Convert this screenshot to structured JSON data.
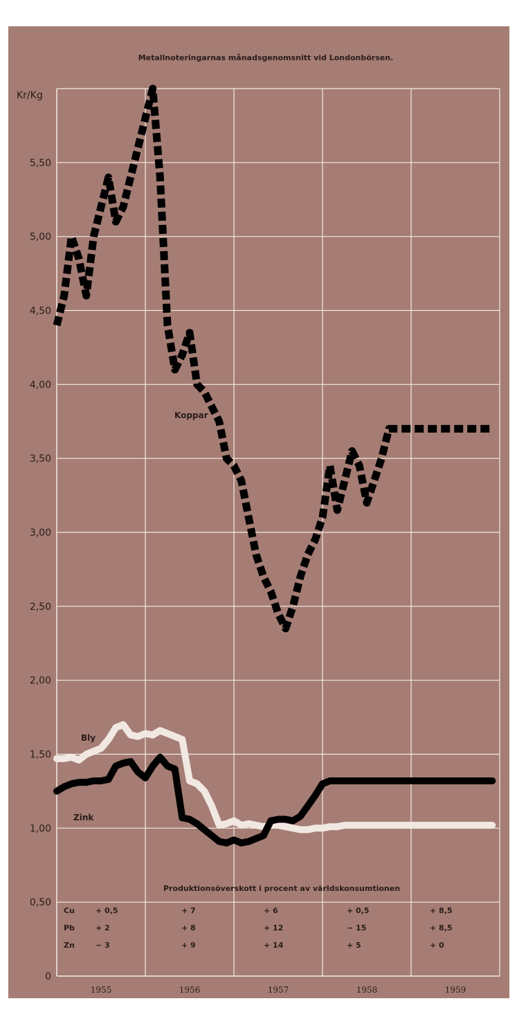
{
  "chart_data": {
    "type": "line",
    "title": "Metallnoteringarnas månadsgenomsnitt vid Londonbörsen.",
    "ylabel": "Kr/Kg",
    "ylim": [
      0,
      6.0
    ],
    "yticks": [
      "0",
      "0,50",
      "1,00",
      "1,50",
      "2,00",
      "2,50",
      "3,00",
      "3,50",
      "4,00",
      "4,50",
      "5,00",
      "5,50"
    ],
    "ytick_values": [
      0,
      0.5,
      1.0,
      1.5,
      2.0,
      2.5,
      3.0,
      3.5,
      4.0,
      4.5,
      5.0,
      5.5
    ],
    "categories": [
      "1955",
      "1956",
      "1957",
      "1958",
      "1959"
    ],
    "xlim": [
      0,
      60
    ],
    "grid": true,
    "series": [
      {
        "name": "Koppar",
        "style": "dashed",
        "color": "#000000",
        "x": [
          0,
          1,
          2,
          3,
          4,
          5,
          6,
          7,
          8,
          9,
          10,
          11,
          12,
          13,
          14,
          15,
          16,
          17,
          18,
          19,
          20,
          21,
          22,
          23,
          24,
          25,
          26,
          27,
          28,
          29,
          30,
          31,
          32,
          33,
          34,
          35,
          36,
          37,
          38,
          39,
          40,
          41,
          42,
          43,
          44,
          45,
          46,
          47,
          48,
          49,
          50,
          51,
          52,
          53,
          54,
          55,
          56,
          57,
          58,
          59
        ],
        "values": [
          4.4,
          4.6,
          5.0,
          4.85,
          4.6,
          5.0,
          5.2,
          5.4,
          5.1,
          5.2,
          5.4,
          5.6,
          5.8,
          6.0,
          5.4,
          4.4,
          4.1,
          4.2,
          4.35,
          4.0,
          3.95,
          3.85,
          3.75,
          3.5,
          3.45,
          3.35,
          3.1,
          2.85,
          2.7,
          2.6,
          2.45,
          2.35,
          2.5,
          2.7,
          2.85,
          2.95,
          3.1,
          3.45,
          3.15,
          3.35,
          3.55,
          3.45,
          3.2,
          3.35,
          3.5,
          3.7,
          3.7,
          3.7,
          3.7,
          3.7,
          3.7,
          3.7,
          3.7,
          3.7,
          3.7,
          3.7,
          3.7,
          3.7,
          3.7,
          3.7
        ]
      },
      {
        "name": "Bly",
        "style": "solid",
        "color": "#f1e8e2",
        "x": [
          0,
          1,
          2,
          3,
          4,
          5,
          6,
          7,
          8,
          9,
          10,
          11,
          12,
          13,
          14,
          15,
          16,
          17,
          18,
          19,
          20,
          21,
          22,
          23,
          24,
          25,
          26,
          27,
          28,
          29,
          30,
          31,
          32,
          33,
          34,
          35,
          36,
          37,
          38,
          39,
          40,
          41,
          42,
          43,
          44,
          45,
          46,
          47,
          48,
          49,
          50,
          51,
          52,
          53,
          54,
          55,
          56,
          57,
          58,
          59
        ],
        "values": [
          1.47,
          1.47,
          1.48,
          1.46,
          1.5,
          1.52,
          1.54,
          1.6,
          1.68,
          1.7,
          1.63,
          1.62,
          1.64,
          1.63,
          1.66,
          1.64,
          1.62,
          1.6,
          1.32,
          1.3,
          1.25,
          1.15,
          1.02,
          1.03,
          1.05,
          1.02,
          1.03,
          1.02,
          1.01,
          1.02,
          1.02,
          1.01,
          1.0,
          0.99,
          0.99,
          1.0,
          1.0,
          1.01,
          1.01,
          1.02,
          1.02,
          1.02,
          1.02,
          1.02,
          1.02,
          1.02,
          1.02,
          1.02,
          1.02,
          1.02,
          1.02,
          1.02,
          1.02,
          1.02,
          1.02,
          1.02,
          1.02,
          1.02,
          1.02,
          1.02
        ]
      },
      {
        "name": "Zink",
        "style": "solid",
        "color": "#000000",
        "x": [
          0,
          1,
          2,
          3,
          4,
          5,
          6,
          7,
          8,
          9,
          10,
          11,
          12,
          13,
          14,
          15,
          16,
          17,
          18,
          19,
          20,
          21,
          22,
          23,
          24,
          25,
          26,
          27,
          28,
          29,
          30,
          31,
          32,
          33,
          34,
          35,
          36,
          37,
          38,
          39,
          40,
          41,
          42,
          43,
          44,
          45,
          46,
          47,
          48,
          49,
          50,
          51,
          52,
          53,
          54,
          55,
          56,
          57,
          58,
          59
        ],
        "values": [
          1.25,
          1.28,
          1.3,
          1.31,
          1.31,
          1.32,
          1.32,
          1.33,
          1.42,
          1.44,
          1.45,
          1.38,
          1.34,
          1.42,
          1.48,
          1.42,
          1.4,
          1.07,
          1.06,
          1.03,
          0.99,
          0.95,
          0.91,
          0.9,
          0.92,
          0.9,
          0.91,
          0.93,
          0.95,
          1.05,
          1.06,
          1.06,
          1.05,
          1.08,
          1.15,
          1.22,
          1.3,
          1.32,
          1.32,
          1.32,
          1.32,
          1.32,
          1.32,
          1.32,
          1.32,
          1.32,
          1.32,
          1.32,
          1.32,
          1.32,
          1.32,
          1.32,
          1.32,
          1.32,
          1.32,
          1.32,
          1.32,
          1.32,
          1.32,
          1.32
        ]
      }
    ],
    "series_labels": [
      "Koppar",
      "Bly",
      "Zink"
    ],
    "table": {
      "title": "Produktionsöverskott i procent av världskonsumtionen",
      "rows": [
        {
          "metal": "Cu",
          "values": [
            "+ 0,5",
            "+ 7",
            "+ 6",
            "+ 0,5",
            "+ 8,5"
          ]
        },
        {
          "metal": "Pb",
          "values": [
            "+ 2",
            "+ 8",
            "+ 12",
            "− 15",
            "+ 8,5"
          ]
        },
        {
          "metal": "Zn",
          "values": [
            "− 3",
            "+ 9",
            "+ 14",
            "+ 5",
            "+ 0"
          ]
        }
      ]
    }
  },
  "colors": {
    "background": "#a57d74",
    "grid": "#f3ebe6",
    "text": "#2a1c19"
  }
}
